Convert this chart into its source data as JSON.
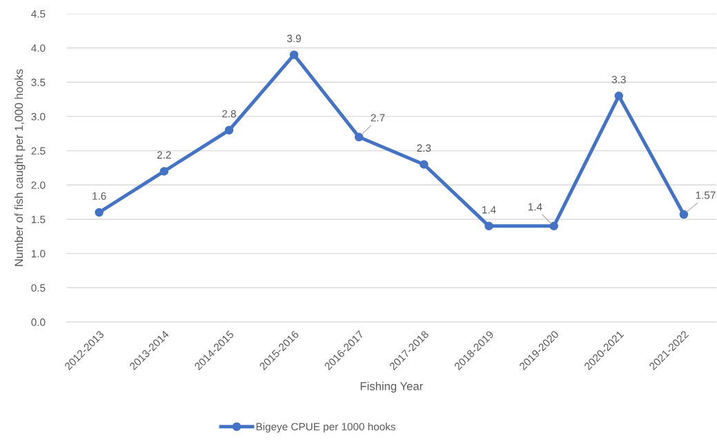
{
  "chart_data": {
    "type": "line",
    "xlabel": "Fishing Year",
    "ylabel": "Number of fish caught per 1,000 hooks",
    "categories": [
      "2012-2013",
      "2013-2014",
      "2014-2015",
      "2015-2016",
      "2016-2017",
      "2017-2018",
      "2018-2019",
      "2019-2020",
      "2020-2021",
      "2021-2022"
    ],
    "series": [
      {
        "name": "Bigeye CPUE per 1000 hooks",
        "color": "#4472c4",
        "values": [
          1.6,
          2.2,
          2.8,
          3.9,
          2.7,
          2.3,
          1.4,
          1.4,
          3.3,
          1.57
        ]
      }
    ],
    "ylim": [
      0,
      4.5
    ],
    "yticks": [
      {
        "value": 0,
        "label": "0.0"
      },
      {
        "value": 0.5,
        "label": "0.5"
      },
      {
        "value": 1,
        "label": "1.0"
      },
      {
        "value": 1.5,
        "label": "1.5"
      },
      {
        "value": 2,
        "label": "2.0"
      },
      {
        "value": 2.5,
        "label": "2.5"
      },
      {
        "value": 3,
        "label": "3.0"
      },
      {
        "value": 3.5,
        "label": "3.5"
      },
      {
        "value": 4,
        "label": "4.0"
      },
      {
        "value": 4.5,
        "label": "4.5"
      }
    ],
    "grid": "y",
    "legend": "bottom",
    "marker": "circle",
    "line_style": "solid",
    "data_labels": true
  }
}
